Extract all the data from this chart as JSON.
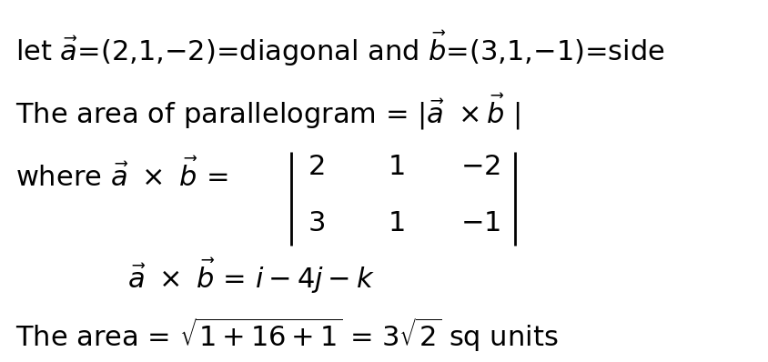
{
  "bg_color": "#ffffff",
  "text_color": "#000000",
  "figsize": [
    8.44,
    3.98
  ],
  "dpi": 100,
  "line1": "let $\\vec{a}$=(2,1,−2)=diagonal and $\\vec{b}$=(3,1,−1)=side",
  "line2": "The area of parallelogram = |$\\vec{a}$ ×$\\vec{b}$ |",
  "line3_prefix": "where $\\vec{a}$ × $\\vec{b}$ = ",
  "matrix_row1": [
    "2",
    "1",
    "−2"
  ],
  "matrix_row2": [
    "3",
    "1",
    "−1"
  ],
  "line4_prefix": "$\\vec{a}$ × $\\vec{b}$ = ",
  "line4_suffix": "$i$−4$j$−$k$",
  "line5": "The area = $\\sqrt{1+16+1}$ = 3$\\sqrt{2}$ sq units",
  "font_size_main": 22,
  "font_size_matrix": 22
}
